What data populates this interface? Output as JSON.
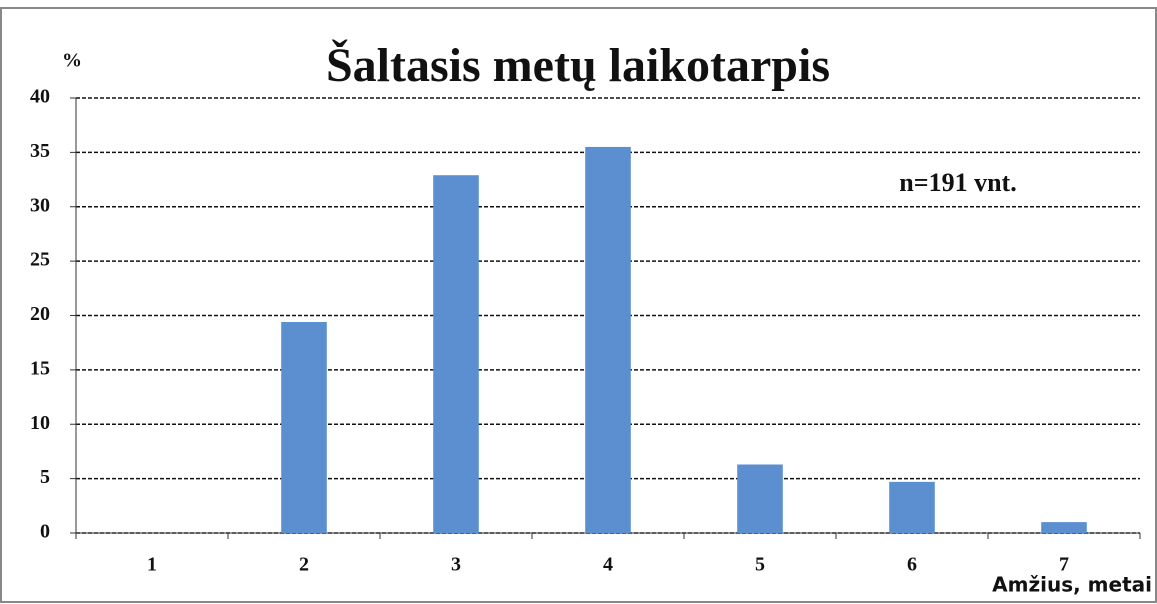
{
  "chart_data": {
    "type": "bar",
    "title": "Šaltasis metų laikotarpis",
    "y_label": "%",
    "x_label": "Amžius, metai",
    "annotation": "n=191 vnt.",
    "categories": [
      "1",
      "2",
      "3",
      "4",
      "5",
      "6",
      "7"
    ],
    "values": [
      0,
      19.4,
      32.9,
      35.5,
      6.3,
      4.7,
      1.0
    ],
    "color": "#5b8fd0",
    "ylim": [
      0,
      40
    ],
    "yticks": [
      0,
      5,
      10,
      15,
      20,
      25,
      30,
      35,
      40
    ],
    "grid": true
  }
}
